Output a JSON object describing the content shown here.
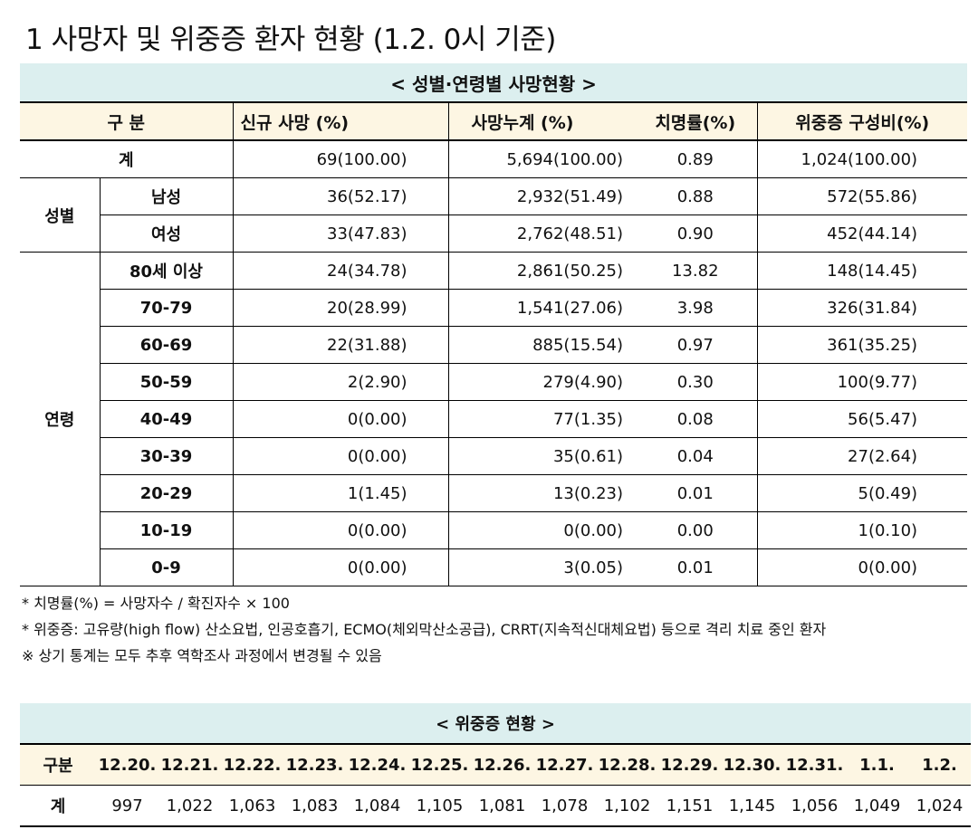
{
  "title": "1 사망자 및 위중증 환자 현황 (1.2. 0시 기준)",
  "table1": {
    "caption": "< 성별·연령별 사망현황 >",
    "headers": [
      "구 분",
      "신규 사망 (%)",
      "사망누계 (%)",
      "치명률(%)",
      "위중증 구성비(%)"
    ],
    "total": {
      "label": "계",
      "cells": [
        "69(100.00)",
        "5,694(100.00)",
        "0.89",
        "1,024(100.00)"
      ]
    },
    "groups": [
      {
        "label": "성별",
        "rows": [
          {
            "label": "남성",
            "cells": [
              "36(52.17)",
              "2,932(51.49)",
              "0.88",
              "572(55.86)"
            ]
          },
          {
            "label": "여성",
            "cells": [
              "33(47.83)",
              "2,762(48.51)",
              "0.90",
              "452(44.14)"
            ]
          }
        ]
      },
      {
        "label": "연령",
        "rows": [
          {
            "label": "80세 이상",
            "cells": [
              "24(34.78)",
              "2,861(50.25)",
              "13.82",
              "148(14.45)"
            ]
          },
          {
            "label": "70-79",
            "cells": [
              "20(28.99)",
              "1,541(27.06)",
              "3.98",
              "326(31.84)"
            ]
          },
          {
            "label": "60-69",
            "cells": [
              "22(31.88)",
              "885(15.54)",
              "0.97",
              "361(35.25)"
            ]
          },
          {
            "label": "50-59",
            "cells": [
              "2(2.90)",
              "279(4.90)",
              "0.30",
              "100(9.77)"
            ]
          },
          {
            "label": "40-49",
            "cells": [
              "0(0.00)",
              "77(1.35)",
              "0.08",
              "56(5.47)"
            ]
          },
          {
            "label": "30-39",
            "cells": [
              "0(0.00)",
              "35(0.61)",
              "0.04",
              "27(2.64)"
            ]
          },
          {
            "label": "20-29",
            "cells": [
              "1(1.45)",
              "13(0.23)",
              "0.01",
              "5(0.49)"
            ]
          },
          {
            "label": "10-19",
            "cells": [
              "0(0.00)",
              "0(0.00)",
              "0.00",
              "1(0.10)"
            ]
          },
          {
            "label": "0-9",
            "cells": [
              "0(0.00)",
              "3(0.05)",
              "0.01",
              "0(0.00)"
            ]
          }
        ]
      }
    ]
  },
  "notes": [
    "* 치명률(%) = 사망자수 / 확진자수 × 100",
    "* 위중증: 고유량(high flow) 산소요법, 인공호흡기, ECMO(체외막산소공급), CRRT(지속적신대체요법) 등으로 격리 치료 중인 환자",
    "※ 상기 통계는 모두 추후 역학조사 과정에서 변경될 수 있음"
  ],
  "table2": {
    "caption": "< 위중증 현황 >",
    "header_label": "구분",
    "dates": [
      "12.20.",
      "12.21.",
      "12.22.",
      "12.23.",
      "12.24.",
      "12.25.",
      "12.26.",
      "12.27.",
      "12.28.",
      "12.29.",
      "12.30.",
      "12.31.",
      "1.1.",
      "1.2."
    ],
    "row_label": "계",
    "values": [
      "997",
      "1,022",
      "1,063",
      "1,083",
      "1,084",
      "1,105",
      "1,081",
      "1,078",
      "1,102",
      "1,151",
      "1,145",
      "1,056",
      "1,049",
      "1,024"
    ]
  }
}
